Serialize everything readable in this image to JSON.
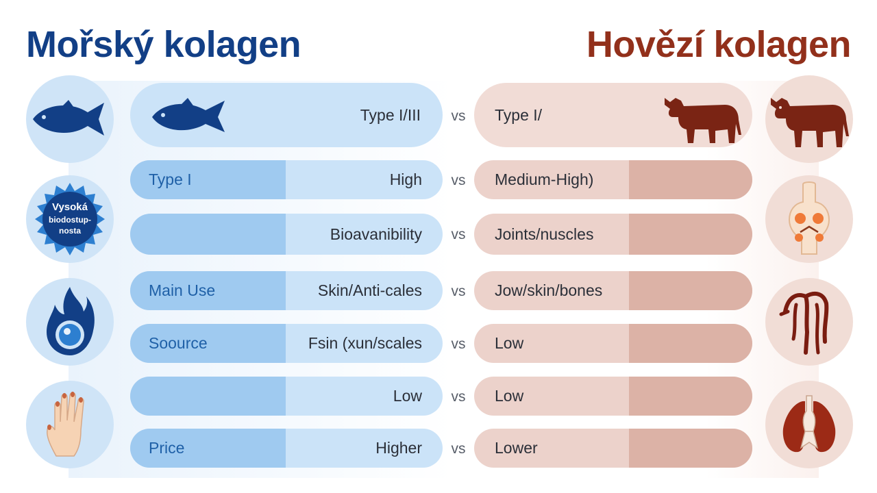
{
  "titles": {
    "left": "Mořský kolagen",
    "right": "Hovězí kolagen"
  },
  "badge": {
    "line1": "Vysoká",
    "line2": "biodostup-",
    "line3": "nosta"
  },
  "vs_label": "vs",
  "rows": [
    {
      "left_label": "",
      "left_value": "Type I/III",
      "right_value": "Type I/"
    },
    {
      "left_label": "Type I",
      "left_value": "High",
      "right_value": "Medium-High)"
    },
    {
      "left_label": "",
      "left_value": "Bioavanibility",
      "right_value": "Joints/nuscles"
    },
    {
      "left_label": "Main Use",
      "left_value": "Skin/Anti-cales",
      "right_value": "Jow/skin/bones"
    },
    {
      "left_label": "Soource",
      "left_value": "Fsin (xun/scales",
      "right_value": "Low"
    },
    {
      "left_label": "",
      "left_value": "Low",
      "right_value": "Low"
    },
    {
      "left_label": "Price",
      "left_value": "Higher",
      "right_value": "Lower"
    }
  ],
  "icons": {
    "left": [
      "fish-icon",
      "bioavailability-badge-icon",
      "water-flame-icon",
      "hand-icon"
    ],
    "right": [
      "cow-icon",
      "joint-cartilage-icon",
      "tendons-icon",
      "lungs-icon"
    ],
    "in_row": [
      "fish-icon",
      "cow-icon"
    ]
  },
  "colors": {
    "marine_title": "#123f86",
    "bovine_title": "#92301b",
    "marine_pill": "#cbe3f8",
    "bovine_pill": "#ecd2cb"
  }
}
